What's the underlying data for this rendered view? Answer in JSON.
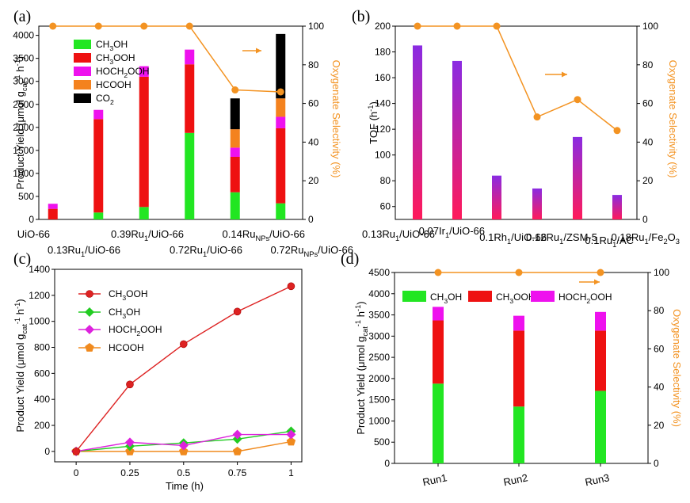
{
  "colors": {
    "ch3oh": "#22e622",
    "ch3ooh": "#ee1111",
    "hoch2ooh": "#ee11ee",
    "hcooh": "#f4821e",
    "co2": "#000000",
    "selectivity": "#f39322",
    "tof_top": "#8a2be2",
    "tof_bottom": "#ff1a5a",
    "line_ch3ooh": "#dd2222",
    "line_ch3oh": "#22cc22",
    "line_hoch2ooh": "#dd22dd",
    "line_hcooh": "#f08a1e"
  },
  "chart_data": [
    {
      "panel": "(a)",
      "type": "bar",
      "stacked": true,
      "categories": [
        "UiO-66",
        "0.13Ru1/UiO-66",
        "0.39Ru1/UiO-66",
        "0.72Ru1/UiO-66",
        "0.14RuNPs/UiO-66",
        "0.72RuNPs/UiO-66"
      ],
      "series": [
        {
          "name": "CH3OH",
          "values": [
            0,
            150,
            270,
            1880,
            590,
            350
          ]
        },
        {
          "name": "CH3OOH",
          "values": [
            230,
            2030,
            2830,
            1490,
            770,
            1630
          ]
        },
        {
          "name": "HOCH2OOH",
          "values": [
            110,
            200,
            230,
            320,
            200,
            250
          ]
        },
        {
          "name": "HCOOH",
          "values": [
            0,
            0,
            0,
            0,
            400,
            400
          ]
        },
        {
          "name": "CO2",
          "values": [
            0,
            0,
            0,
            0,
            670,
            1400
          ]
        }
      ],
      "selectivity": [
        100,
        100,
        100,
        100,
        67,
        66
      ],
      "xlabel": "",
      "ylabel": "Product Yield (μmol gcat-1 h-1)",
      "ylabel_right": "Oxygenate Selectivity (%)",
      "ylim": [
        0,
        4200
      ],
      "yticks": [
        0,
        500,
        1000,
        1500,
        2000,
        2500,
        3000,
        3500,
        4000
      ],
      "ylim_right": [
        0,
        100
      ],
      "yticks_right": [
        0,
        20,
        40,
        60,
        80,
        100
      ],
      "legend_position": "top-left"
    },
    {
      "panel": "(b)",
      "type": "bar",
      "categories": [
        "0.13Ru1/UiO-66",
        "0.07Ir1/UiO-66",
        "0.1Rh1/UiO-66",
        "0.12Ru1/ZSM-5",
        "0.1Ru1/AC",
        "0.18Ru1/Fe2O3"
      ],
      "values": [
        185,
        173,
        84,
        74,
        114,
        69
      ],
      "selectivity": [
        100,
        100,
        100,
        53,
        62,
        46
      ],
      "xlabel": "",
      "ylabel": "TOF (h-1)",
      "ylabel_right": "Oxygenate Selectivity (%)",
      "ylim": [
        50,
        200
      ],
      "yticks": [
        60,
        80,
        100,
        120,
        140,
        160,
        180,
        200
      ],
      "ylim_right": [
        0,
        100
      ],
      "yticks_right": [
        0,
        20,
        40,
        60,
        80,
        100
      ]
    },
    {
      "panel": "(c)",
      "type": "line",
      "x": [
        0,
        0.25,
        0.5,
        0.75,
        1
      ],
      "series": [
        {
          "name": "CH3OOH",
          "values": [
            0,
            515,
            825,
            1075,
            1270
          ]
        },
        {
          "name": "CH3OH",
          "values": [
            0,
            40,
            65,
            95,
            155
          ]
        },
        {
          "name": "HOCH2OOH",
          "values": [
            0,
            70,
            45,
            130,
            130
          ]
        },
        {
          "name": "HCOOH",
          "values": [
            0,
            0,
            0,
            0,
            75
          ]
        }
      ],
      "xlabel": "Time (h)",
      "ylabel": "Product Yield (μmol gcat-1 h-1)",
      "xlim": [
        -0.1,
        1.05
      ],
      "xticks": [
        "0",
        "0.25",
        "0.5",
        "0.75",
        "1"
      ],
      "ylim": [
        -80,
        1400
      ],
      "yticks": [
        0,
        200,
        400,
        600,
        800,
        1000,
        1200,
        1400
      ],
      "legend_position": "top-left"
    },
    {
      "panel": "(d)",
      "type": "bar",
      "stacked": true,
      "categories": [
        "Run1",
        "Run2",
        "Run3"
      ],
      "series": [
        {
          "name": "CH3OH",
          "values": [
            1880,
            1340,
            1710
          ]
        },
        {
          "name": "CH3OOH",
          "values": [
            1490,
            1790,
            1420
          ]
        },
        {
          "name": "HOCH2OOH",
          "values": [
            320,
            350,
            440
          ]
        }
      ],
      "selectivity": [
        100,
        100,
        100
      ],
      "xlabel": "",
      "ylabel": "Product Yield (μmol gcat-1 h-1)",
      "ylabel_right": "Oxygenate Selectivity (%)",
      "ylim": [
        0,
        4500
      ],
      "yticks": [
        0,
        500,
        1000,
        1500,
        2000,
        2500,
        3000,
        3500,
        4000,
        4500
      ],
      "ylim_right": [
        0,
        100
      ],
      "yticks_right": [
        0,
        20,
        40,
        60,
        80,
        100
      ],
      "legend_position": "top"
    }
  ]
}
